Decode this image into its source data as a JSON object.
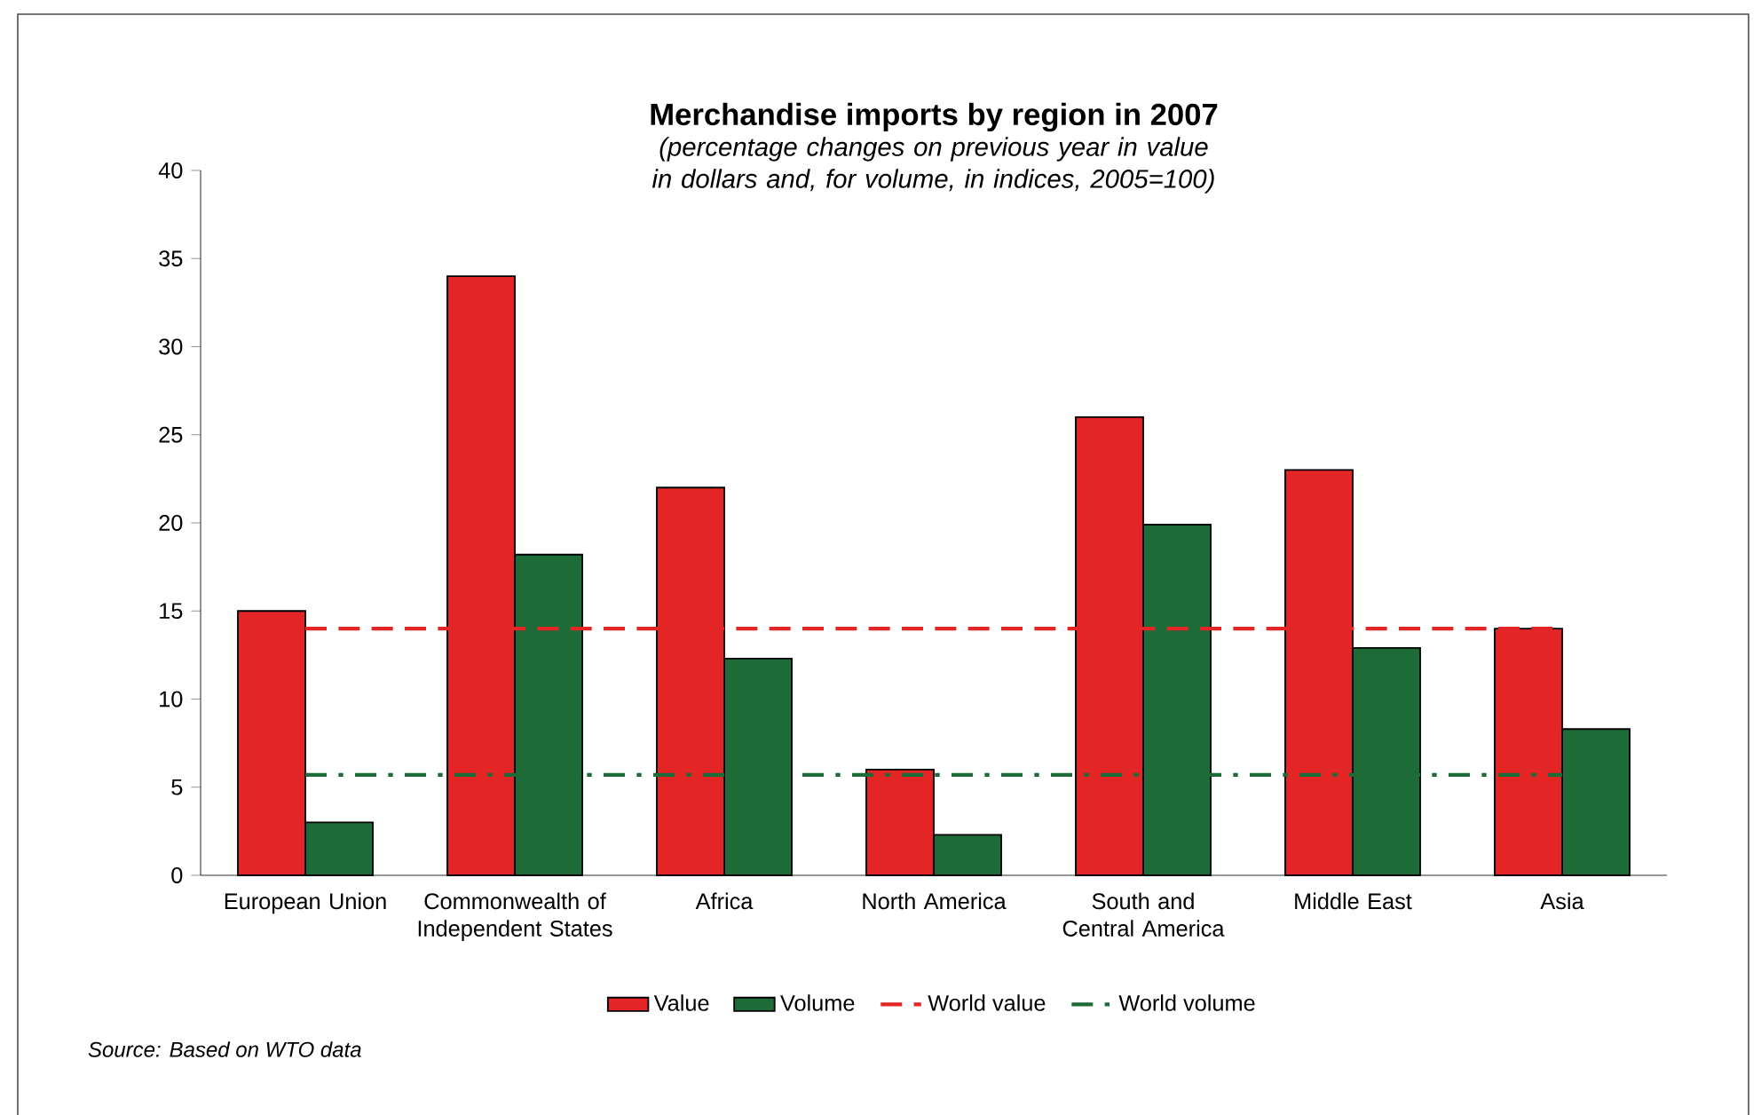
{
  "chart_data": {
    "type": "bar",
    "title": "Merchandise imports by region in 2007",
    "subtitle": "(percentage changes on previous year in value in dollars and, for volume, in indices, 2005=100)",
    "categories": [
      "European Union",
      "Commonwealth of Independent States",
      "Africa",
      "North America",
      "South and Central America",
      "Middle East",
      "Asia"
    ],
    "series": [
      {
        "name": "Value",
        "color": "#e32526",
        "values": [
          15,
          34,
          22,
          6,
          26,
          23,
          14
        ]
      },
      {
        "name": "Volume",
        "color": "#1d6b37",
        "values": [
          3,
          18.2,
          12.3,
          2.3,
          19.9,
          12.9,
          8.3
        ]
      },
      {
        "name": "World  value",
        "type": "line",
        "color": "#e32526",
        "line_style": "dashed",
        "values": [
          14,
          14,
          14,
          14,
          14,
          14,
          14
        ]
      },
      {
        "name": "World volume",
        "type": "line",
        "color": "#1d6b37",
        "line_style": "dashdot",
        "values": [
          5.7,
          5.7,
          5.7,
          5.7,
          5.7,
          5.7,
          5.7
        ]
      }
    ],
    "ylim": [
      0,
      40
    ],
    "yticks": [
      0,
      5,
      10,
      15,
      20,
      25,
      30,
      35,
      40
    ],
    "grid": false,
    "legend": "bottom",
    "marker": "none",
    "annotations": [
      "Source: Based on WTO data"
    ]
  }
}
